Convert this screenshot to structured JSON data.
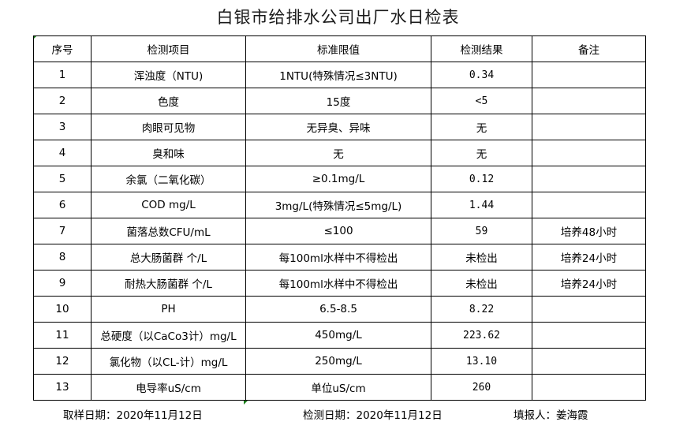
{
  "title": "白银市给排水公司出厂水日检表",
  "headers": [
    "序号",
    "检测项目",
    "标准限值",
    "检测结果",
    "备注"
  ],
  "rows": [
    [
      "1",
      "浑浊度（NTU)",
      "1NTU(特殊情况≤3NTU)",
      "0.34",
      ""
    ],
    [
      "2",
      "色度",
      "15度",
      "<5",
      ""
    ],
    [
      "3",
      "肉眼可见物",
      "无异臭、异味",
      "无",
      ""
    ],
    [
      "4",
      "臭和味",
      "无",
      "无",
      ""
    ],
    [
      "5",
      "余氯（二氧化碳）",
      "≥0.1mg/L",
      "0.12",
      ""
    ],
    [
      "6",
      "COD        mg/L",
      "3mg/L(特殊情况≤5mg/L)",
      "1.44",
      ""
    ],
    [
      "7",
      "菌落总数CFU/mL",
      "≤100",
      "59",
      "培养48小时"
    ],
    [
      "8",
      "总大肠菌群 个/L",
      "每100ml水样中不得检出",
      "未检出",
      "培养24小时"
    ],
    [
      "9",
      "耐热大肠菌群 个/L",
      "每100ml水样中不得检出",
      "未检出",
      "培养24小时"
    ],
    [
      "10",
      "PH",
      "6.5-8.5",
      "8.22",
      ""
    ],
    [
      "11",
      "总硬度（以CaCo3计）mg/L",
      "450mg/L",
      "223.62",
      ""
    ],
    [
      "12",
      "氯化物（以CL-计）mg/L",
      "250mg/L",
      "13.10",
      ""
    ],
    [
      "13",
      "电导率uS/cm",
      "单位uS/cm",
      "260",
      ""
    ]
  ],
  "footer": {
    "sampling_date": "取样日期：2020年11月12日",
    "test_date": "检测日期：2020年11月12日",
    "reporter": "填报人：姜海霞"
  }
}
